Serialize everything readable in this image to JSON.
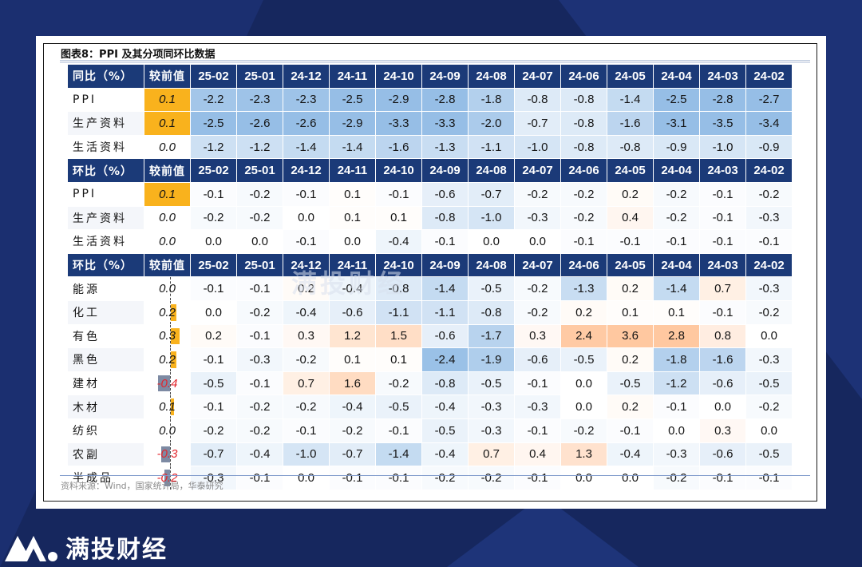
{
  "figure": {
    "title": "图表8：PPI 及其分项同环比数据",
    "source": "资料来源：Wind，国家统计局，华泰研究"
  },
  "brand": {
    "name": "满投财经",
    "watermark": "满投财经"
  },
  "colors": {
    "header": "#1b3a78",
    "positive": "#f9b21d",
    "negative": "#7d8aa3"
  },
  "chart_data": {
    "type": "table",
    "months": [
      "25-02",
      "25-01",
      "24-12",
      "24-11",
      "24-10",
      "24-09",
      "24-08",
      "24-07",
      "24-06",
      "24-05",
      "24-04",
      "24-03",
      "24-02"
    ],
    "change_header": "较前值",
    "sections": [
      {
        "header": "同比（%）",
        "rows": [
          {
            "label": "PPI",
            "change": "0.1",
            "values": [
              -2.2,
              -2.3,
              -2.3,
              -2.5,
              -2.9,
              -2.8,
              -1.8,
              -0.8,
              -0.8,
              -1.4,
              -2.5,
              -2.8,
              -2.7
            ]
          },
          {
            "label": "生产资料",
            "change": "0.1",
            "values": [
              -2.5,
              -2.6,
              -2.6,
              -2.9,
              -3.3,
              -3.3,
              -2.0,
              -0.7,
              -0.8,
              -1.6,
              -3.1,
              -3.5,
              -3.4
            ]
          },
          {
            "label": "生活资料",
            "change": "0.0",
            "values": [
              -1.2,
              -1.2,
              -1.4,
              -1.4,
              -1.6,
              -1.3,
              -1.1,
              -1.0,
              -0.8,
              -0.8,
              -0.9,
              -1.0,
              -0.9
            ]
          }
        ]
      },
      {
        "header": "环比（%）",
        "rows": [
          {
            "label": "PPI",
            "change": "0.1",
            "values": [
              -0.1,
              -0.2,
              -0.1,
              0.1,
              -0.1,
              -0.6,
              -0.7,
              -0.2,
              -0.2,
              0.2,
              -0.2,
              -0.1,
              -0.2
            ]
          },
          {
            "label": "生产资料",
            "change": "0.0",
            "values": [
              -0.2,
              -0.2,
              0.0,
              0.1,
              0.1,
              -0.8,
              -1.0,
              -0.3,
              -0.2,
              0.4,
              -0.2,
              -0.1,
              -0.3
            ]
          },
          {
            "label": "生活资料",
            "change": "0.0",
            "values": [
              0.0,
              0.0,
              -0.1,
              0.0,
              -0.4,
              -0.1,
              0.0,
              0.0,
              -0.1,
              -0.1,
              -0.1,
              -0.1,
              -0.1
            ]
          }
        ]
      },
      {
        "header": "环比（%）",
        "rows": [
          {
            "label": "能源",
            "change": "0.0",
            "values": [
              -0.1,
              -0.1,
              0.2,
              -0.4,
              -0.8,
              -1.4,
              -0.5,
              -0.2,
              -1.3,
              0.2,
              -1.4,
              0.7,
              -0.3
            ]
          },
          {
            "label": "化工",
            "change": "0.2",
            "values": [
              0.0,
              -0.2,
              -0.4,
              -0.6,
              -1.1,
              -1.1,
              -0.8,
              -0.2,
              0.2,
              0.1,
              0.1,
              -0.1,
              -0.2
            ]
          },
          {
            "label": "有色",
            "change": "0.3",
            "values": [
              0.2,
              -0.1,
              0.3,
              1.2,
              1.5,
              -0.6,
              -1.7,
              0.3,
              2.4,
              3.6,
              2.8,
              0.8,
              0.0
            ]
          },
          {
            "label": "黑色",
            "change": "0.2",
            "values": [
              -0.1,
              -0.3,
              -0.2,
              0.1,
              0.1,
              -2.4,
              -1.9,
              -0.6,
              -0.5,
              0.2,
              -1.8,
              -1.6,
              -0.3
            ]
          },
          {
            "label": "建材",
            "change": "-0.4",
            "values": [
              -0.5,
              -0.1,
              0.7,
              1.6,
              -0.2,
              -0.8,
              -0.5,
              -0.1,
              0.0,
              -0.5,
              -1.2,
              -0.6,
              -0.5
            ]
          },
          {
            "label": "木材",
            "change": "0.1",
            "values": [
              -0.1,
              -0.2,
              -0.2,
              -0.4,
              -0.5,
              -0.4,
              -0.3,
              -0.3,
              0.0,
              0.2,
              -0.1,
              0.0,
              -0.2
            ]
          },
          {
            "label": "纺织",
            "change": "0.0",
            "values": [
              -0.2,
              -0.2,
              -0.1,
              -0.2,
              -0.1,
              -0.5,
              -0.3,
              -0.1,
              -0.2,
              -0.1,
              0.0,
              0.3,
              0.0
            ]
          },
          {
            "label": "农副",
            "change": "-0.3",
            "values": [
              -0.7,
              -0.4,
              -1.0,
              -0.7,
              -1.4,
              -0.4,
              0.7,
              0.4,
              1.3,
              -0.4,
              -0.3,
              -0.6,
              -0.5
            ]
          },
          {
            "label": "半成品",
            "change": "-0.2",
            "values": [
              -0.3,
              -0.1,
              0.0,
              -0.1,
              -0.1,
              -0.2,
              -0.2,
              -0.1,
              0.0,
              0.0,
              -0.2,
              -0.1,
              -0.1
            ]
          }
        ]
      }
    ]
  }
}
